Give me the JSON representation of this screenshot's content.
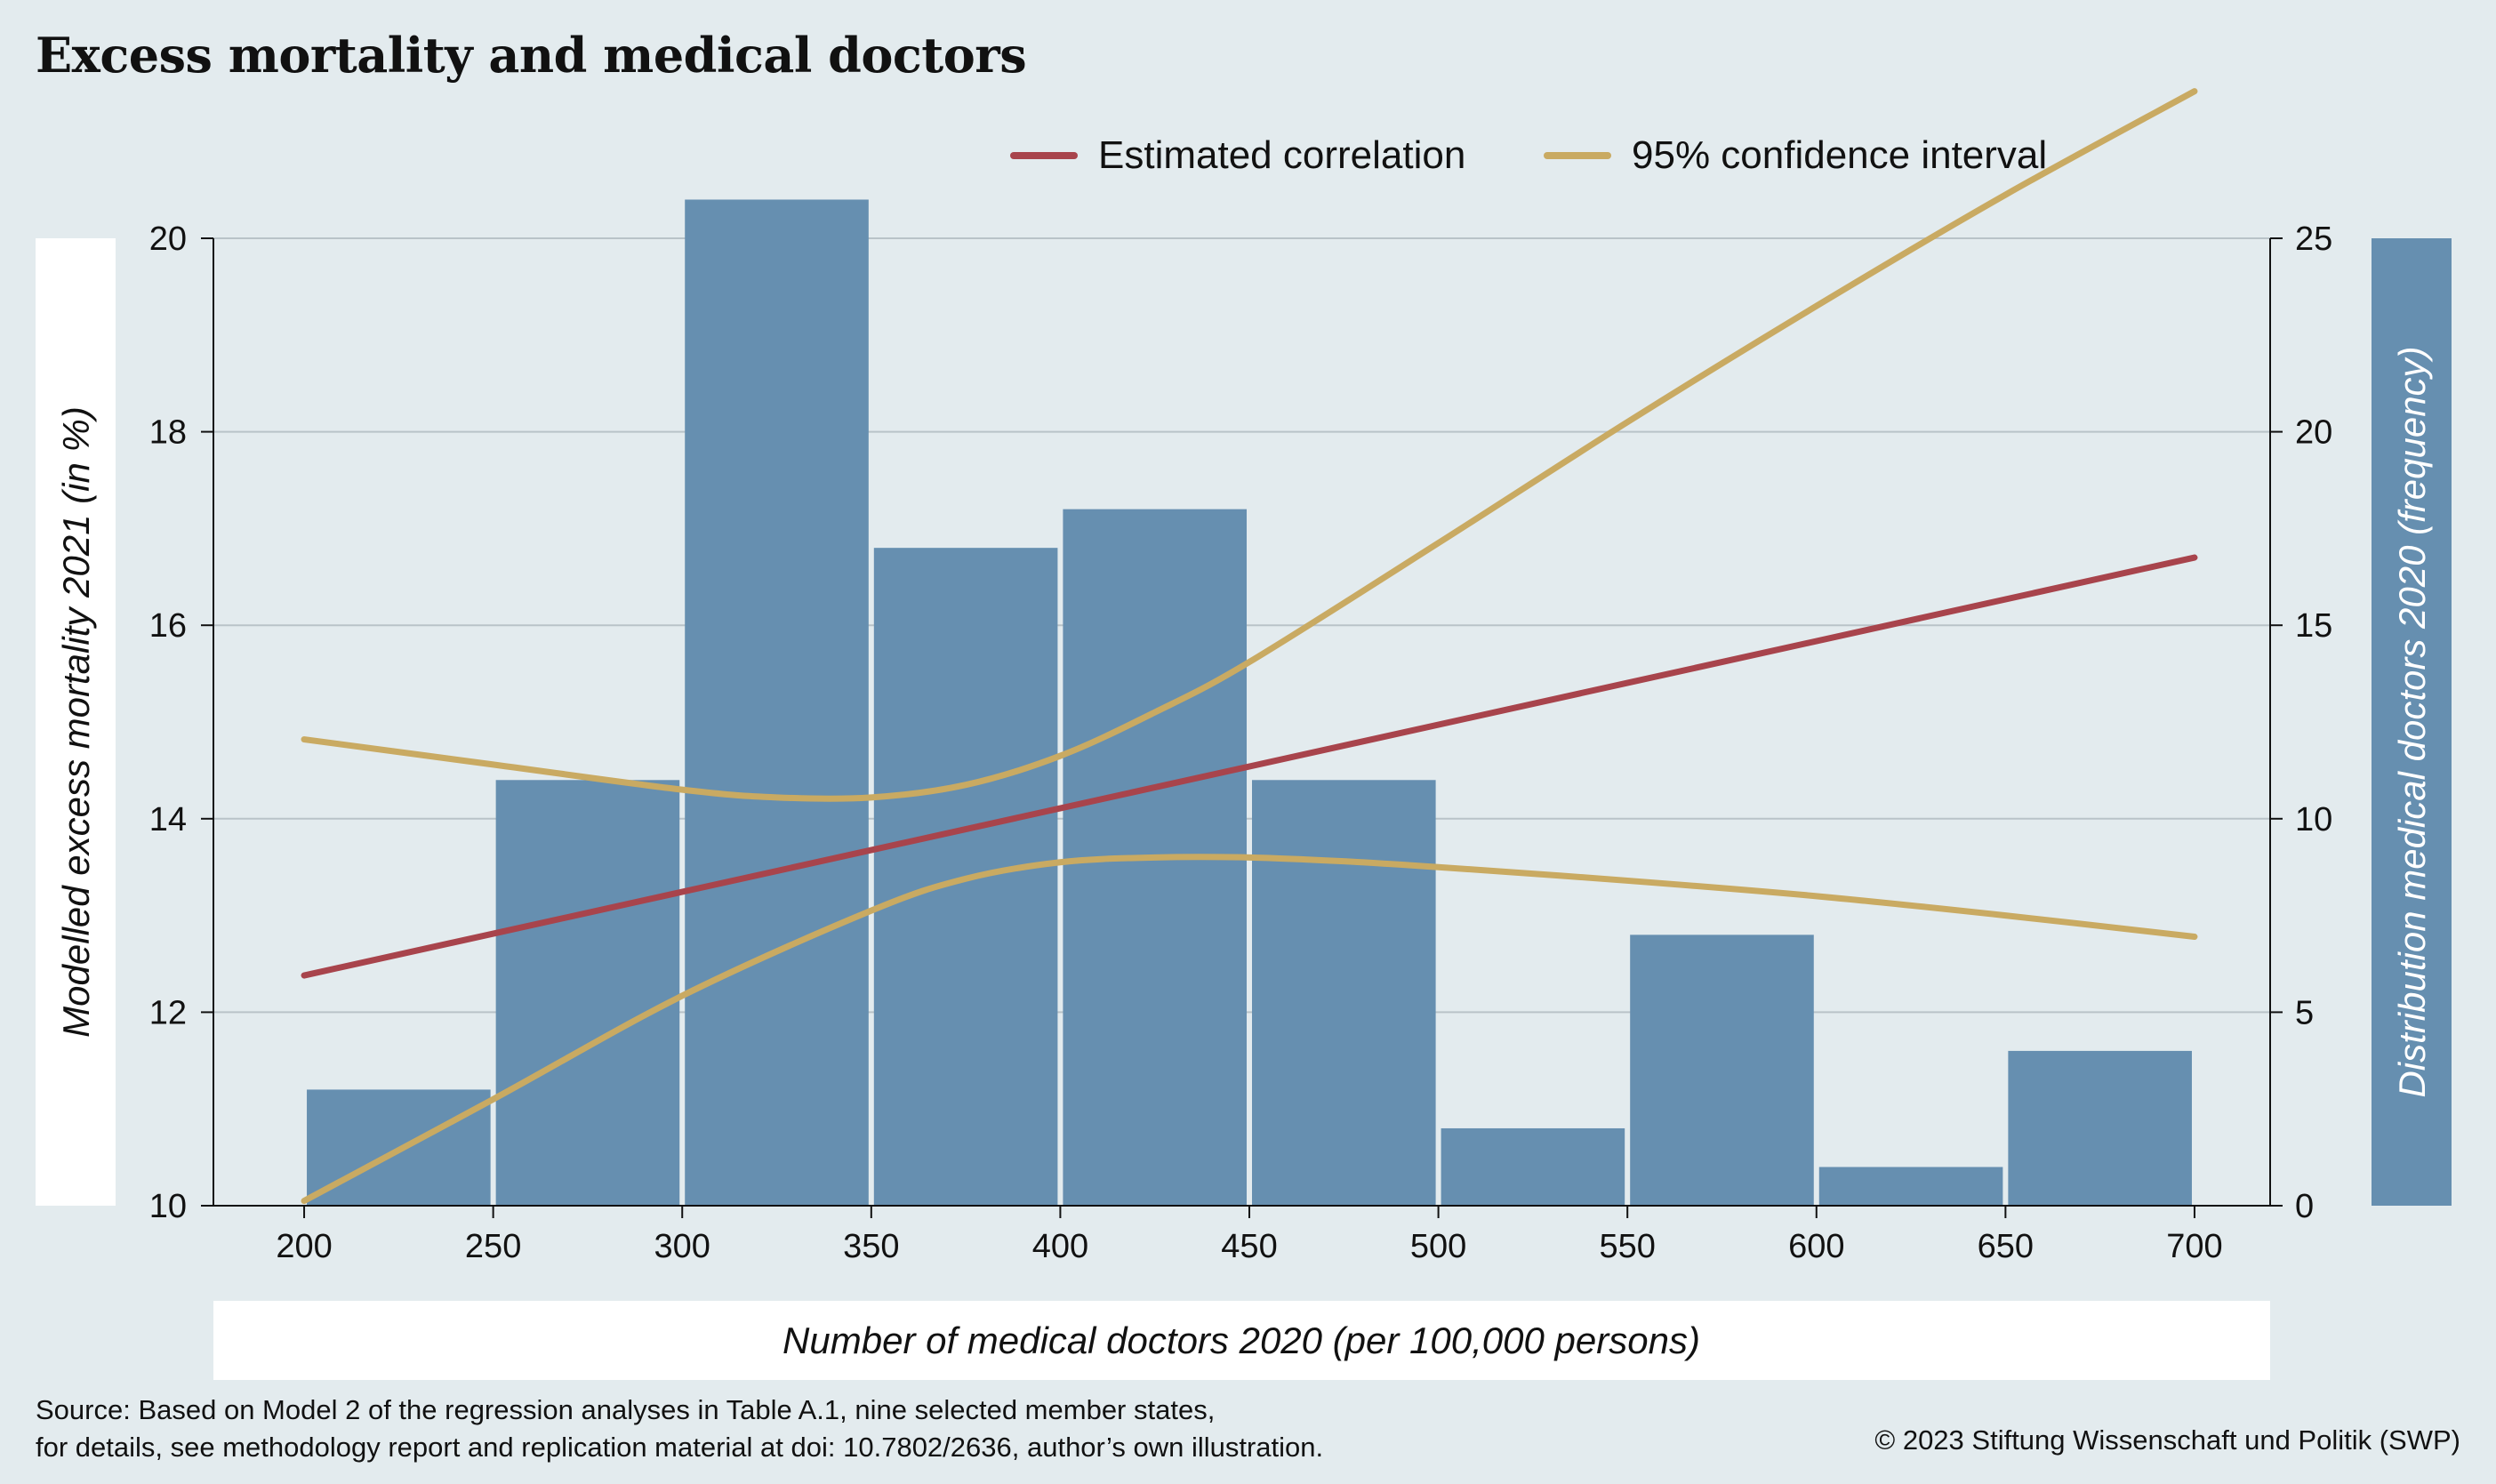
{
  "title": "Excess mortality and medical doctors",
  "source_line1": "Source: Based on Model 2 of the regression analyses in Table A.1, nine selected member states,",
  "source_line2": "for details, see methodology report and replication material at doi: 10.7802/2636, author’s own illustration.",
  "copyright": "© 2023 Stiftung Wissenschaft und Politik (SWP)",
  "colors": {
    "background": "#e3ebee",
    "bars": "#668fb0",
    "estimate": "#a8444c",
    "ci": "#c9aa62",
    "grid": "#b9c3c8"
  },
  "chart_data": {
    "type": "bar",
    "title": "Excess mortality and medical doctors",
    "xlabel": "Number of medical doctors 2020 (per 100,000 persons)",
    "ylabel": "Modelled excess mortality 2021 (in %)",
    "y2label": "Distribution medical doctors 2020 (frequency)",
    "xlim": [
      176,
      720
    ],
    "xticks": [
      200,
      250,
      300,
      350,
      400,
      450,
      500,
      550,
      600,
      650,
      700
    ],
    "ylim": [
      10,
      20
    ],
    "yticks": [
      10,
      12,
      14,
      16,
      18,
      20
    ],
    "y2lim": [
      0,
      25
    ],
    "y2ticks": [
      0,
      5,
      10,
      15,
      20,
      25
    ],
    "grid": true,
    "legend_position": "top-right",
    "histogram": {
      "bin_width": 50,
      "bins": [
        {
          "start": 200,
          "end": 250,
          "frequency": 3
        },
        {
          "start": 250,
          "end": 300,
          "frequency": 11
        },
        {
          "start": 300,
          "end": 350,
          "frequency": 26
        },
        {
          "start": 350,
          "end": 400,
          "frequency": 17
        },
        {
          "start": 400,
          "end": 450,
          "frequency": 18
        },
        {
          "start": 450,
          "end": 500,
          "frequency": 11
        },
        {
          "start": 500,
          "end": 550,
          "frequency": 2
        },
        {
          "start": 550,
          "end": 600,
          "frequency": 7
        },
        {
          "start": 600,
          "end": 650,
          "frequency": 1
        },
        {
          "start": 650,
          "end": 700,
          "frequency": 4
        }
      ]
    },
    "series": [
      {
        "name": "Estimated correlation",
        "type": "line",
        "x": [
          200,
          700
        ],
        "y": [
          12.38,
          16.7
        ]
      },
      {
        "name": "95% confidence interval",
        "type": "line",
        "bound": "upper",
        "x": [
          200,
          250,
          300,
          325,
          350,
          375,
          400,
          425,
          450,
          500,
          550,
          600,
          650,
          700
        ],
        "y": [
          14.82,
          14.56,
          14.3,
          14.22,
          14.22,
          14.35,
          14.65,
          15.1,
          15.62,
          16.85,
          18.1,
          19.3,
          20.45,
          21.52
        ]
      },
      {
        "name": "95% confidence interval",
        "type": "line",
        "bound": "lower",
        "x": [
          200,
          250,
          300,
          350,
          375,
          400,
          425,
          450,
          475,
          500,
          550,
          600,
          650,
          700
        ],
        "y": [
          10.05,
          11.1,
          12.17,
          13.05,
          13.38,
          13.55,
          13.6,
          13.6,
          13.56,
          13.5,
          13.36,
          13.2,
          13.0,
          12.78
        ]
      }
    ]
  }
}
